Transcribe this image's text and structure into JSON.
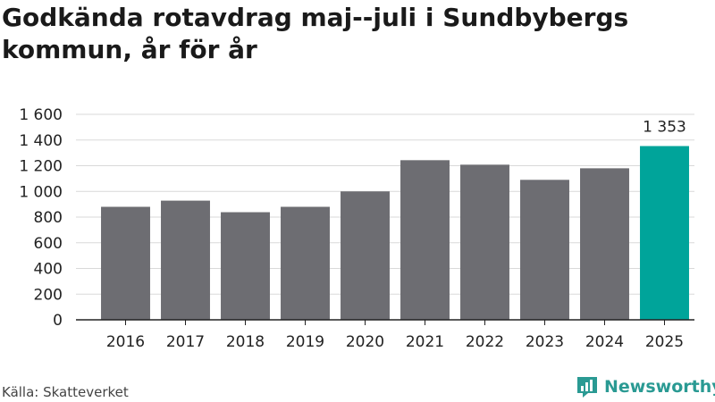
{
  "title": "Godkända rotavdrag maj--juli i Sundbybergs kommun, år för år",
  "source": "Källa: Skatteverket",
  "brand": {
    "name": "Newsworthy",
    "logo_icon": "bar-chart-logo-icon",
    "color": "#2a9a93"
  },
  "colors": {
    "bar_default": "#6d6d72",
    "bar_highlight": "#00a49a",
    "grid": "#d9d9d9",
    "axis": "#222222"
  },
  "chart_data": {
    "type": "bar",
    "title": "Godkända rotavdrag maj--juli i Sundbybergs kommun, år för år",
    "xlabel": "",
    "ylabel": "",
    "categories": [
      "2016",
      "2017",
      "2018",
      "2019",
      "2020",
      "2021",
      "2022",
      "2023",
      "2024",
      "2025"
    ],
    "values": [
      880,
      928,
      838,
      880,
      1000,
      1243,
      1208,
      1090,
      1180,
      1353
    ],
    "highlight_index": 9,
    "data_labels": [
      {
        "index": 9,
        "text": "1 353"
      }
    ],
    "ylim": [
      0,
      1600
    ],
    "yticks": [
      0,
      200,
      400,
      600,
      800,
      1000,
      1200,
      1400,
      1600
    ],
    "ytick_labels": [
      "0",
      "200",
      "400",
      "600",
      "800",
      "1 000",
      "1 200",
      "1 400",
      "1 600"
    ],
    "grid": true,
    "legend": "none"
  }
}
